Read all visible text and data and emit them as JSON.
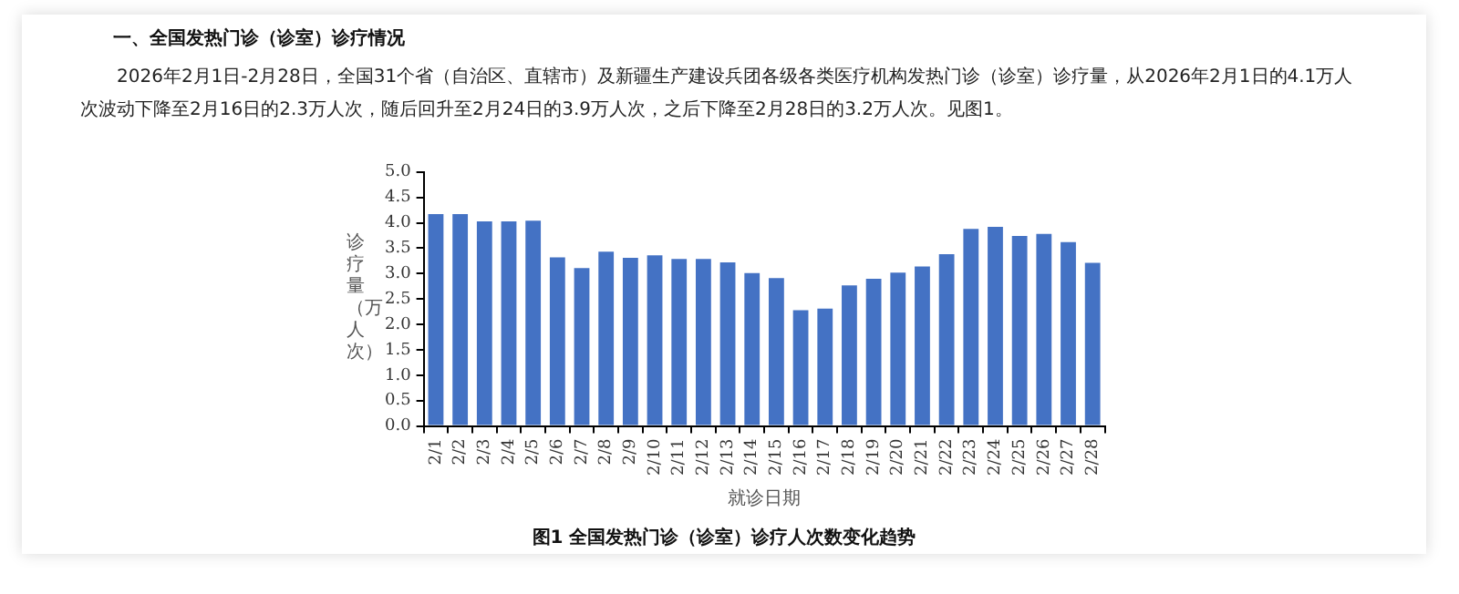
{
  "chart_data": {
    "type": "bar",
    "title": "一、全国发热门诊（诊室）诊疗情况",
    "subtitle": "2026年2月1日-2月28日，全国31个省（自治区、直辖市）及新疆生产建设兵团各级各类医疗机构发热门诊（诊室）诊疗量，从2026年2月1日的4.1万人次波动下降至2月16日的2.3万人次，随后回升至2月24日的3.9万人次，之后下降至2月28日的3.2万人次。见图1。",
    "xlabel": "就诊日期",
    "ylabel": "诊疗量（万人次）",
    "annotations": [
      "图1 全国发热门诊（诊室）诊疗人次数变化趋势"
    ],
    "categories": [
      "2/1",
      "2/2",
      "2/3",
      "2/4",
      "2/5",
      "2/6",
      "2/7",
      "2/8",
      "2/9",
      "2/10",
      "2/11",
      "2/12",
      "2/13",
      "2/14",
      "2/15",
      "2/16",
      "2/17",
      "2/18",
      "2/19",
      "2/20",
      "2/21",
      "2/22",
      "2/23",
      "2/24",
      "2/25",
      "2/26",
      "2/27",
      "2/28"
    ],
    "values": [
      4.17,
      4.17,
      4.03,
      4.03,
      4.04,
      3.32,
      3.11,
      3.43,
      3.31,
      3.36,
      3.29,
      3.29,
      3.22,
      3.01,
      2.91,
      2.28,
      2.31,
      2.77,
      2.9,
      3.02,
      3.14,
      3.38,
      3.88,
      3.92,
      3.74,
      3.78,
      3.62,
      3.21
    ],
    "color": "#4472c4",
    "ylim": [
      0,
      5
    ],
    "yticks": [
      {
        "value": 0,
        "label": "0.0"
      },
      0.5,
      {
        "value": 1,
        "label": "1.0"
      },
      1.5,
      {
        "value": 2,
        "label": "2.0"
      },
      2.5,
      {
        "value": 3,
        "label": "3.0"
      },
      3.5,
      {
        "value": 4,
        "label": "4.0"
      },
      4.5,
      {
        "value": 5,
        "label": "5.0"
      }
    ],
    "grid": false,
    "legend": false
  }
}
